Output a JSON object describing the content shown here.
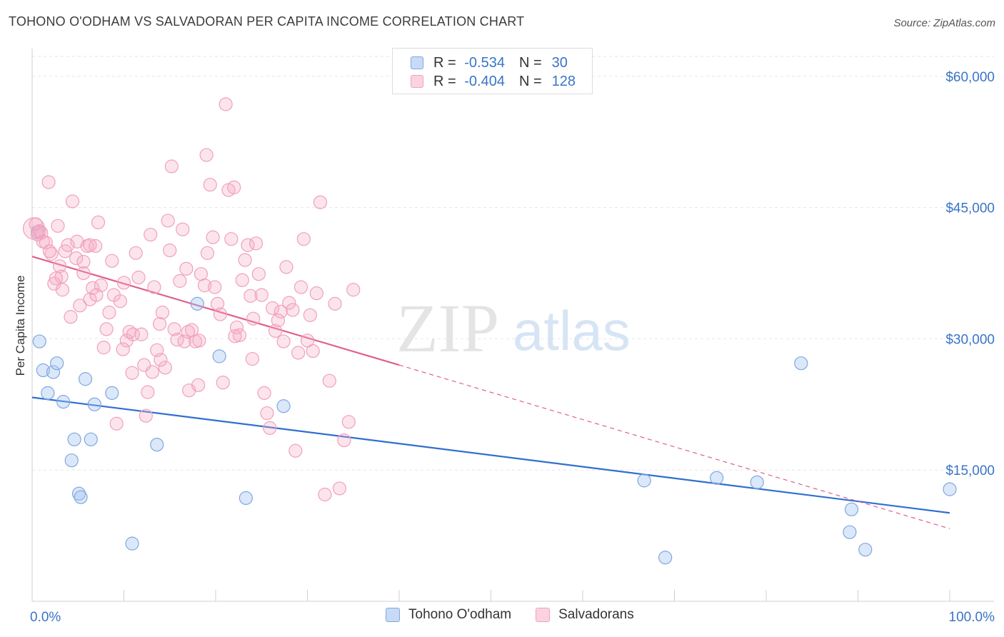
{
  "header": {
    "title": "TOHONO O'ODHAM VS SALVADORAN PER CAPITA INCOME CORRELATION CHART",
    "source": "Source: ZipAtlas.com"
  },
  "watermark": {
    "zip": "ZIP",
    "atlas": "atlas"
  },
  "legend": {
    "rows": [
      {
        "r_label": "R =",
        "r_value": "-0.534",
        "n_label": "N =",
        "n_value": "30",
        "color": "#7fa8e0"
      },
      {
        "r_label": "R =",
        "r_value": "-0.404",
        "n_label": "N =",
        "n_value": "128",
        "color": "#f0a0bc"
      }
    ]
  },
  "bottom_legend": [
    {
      "label": "Tohono O'odham",
      "color": "#7fa8e0"
    },
    {
      "label": "Salvadorans",
      "color": "#f0a0bc"
    }
  ],
  "chart_data": {
    "type": "scatter",
    "title": "TOHONO O'ODHAM VS SALVADORAN PER CAPITA INCOME CORRELATION CHART",
    "xlabel": "",
    "ylabel": "Per Capita Income",
    "xlim": [
      0,
      100
    ],
    "ylim": [
      0,
      63000
    ],
    "x_tick_labels": [
      "0.0%",
      "100.0%"
    ],
    "y_ticks": [
      15000,
      30000,
      45000,
      60000
    ],
    "y_tick_labels": [
      "$15,000",
      "$30,000",
      "$45,000",
      "$60,000"
    ],
    "grid": true,
    "series": [
      {
        "name": "Tohono O'odham",
        "color": "#7fa8e0",
        "line_color": "#2f6fd0",
        "trend": {
          "x": [
            0,
            100
          ],
          "y": [
            23300,
            10100
          ],
          "dashed_to": null
        },
        "points": [
          [
            0.6,
            42200
          ],
          [
            0.8,
            29700
          ],
          [
            1.2,
            26400
          ],
          [
            1.7,
            23800
          ],
          [
            2.3,
            26200
          ],
          [
            2.7,
            27200
          ],
          [
            3.4,
            22800
          ],
          [
            4.3,
            16100
          ],
          [
            4.6,
            18500
          ],
          [
            5.1,
            12300
          ],
          [
            5.3,
            11900
          ],
          [
            5.8,
            25400
          ],
          [
            6.4,
            18500
          ],
          [
            6.8,
            22500
          ],
          [
            8.7,
            23800
          ],
          [
            10.9,
            6600
          ],
          [
            13.6,
            17900
          ],
          [
            18.0,
            34000
          ],
          [
            20.4,
            28000
          ],
          [
            23.3,
            11800
          ],
          [
            27.4,
            22300
          ],
          [
            66.7,
            13800
          ],
          [
            69.0,
            5000
          ],
          [
            74.6,
            14100
          ],
          [
            79.0,
            13600
          ],
          [
            83.8,
            27200
          ],
          [
            89.3,
            10500
          ],
          [
            89.1,
            7900
          ],
          [
            90.8,
            5900
          ],
          [
            100.0,
            12800
          ]
        ]
      },
      {
        "name": "Salvadorans",
        "color": "#f0a0bc",
        "line_color": "#e0608c",
        "trend": {
          "x": [
            0,
            40
          ],
          "y": [
            39400,
            27000
          ],
          "dashed_to": [
            100,
            8300
          ]
        },
        "points": [
          [
            0.2,
            42600
          ],
          [
            0.4,
            43100
          ],
          [
            0.6,
            41900
          ],
          [
            0.8,
            42300
          ],
          [
            1.0,
            42100
          ],
          [
            1.2,
            41100
          ],
          [
            1.5,
            41000
          ],
          [
            1.8,
            47900
          ],
          [
            2.1,
            39700
          ],
          [
            2.4,
            36300
          ],
          [
            2.8,
            42900
          ],
          [
            3.0,
            38300
          ],
          [
            3.3,
            35600
          ],
          [
            3.6,
            40000
          ],
          [
            3.9,
            40700
          ],
          [
            4.2,
            32500
          ],
          [
            4.4,
            45700
          ],
          [
            4.8,
            39200
          ],
          [
            5.2,
            33800
          ],
          [
            5.6,
            37500
          ],
          [
            6.0,
            40600
          ],
          [
            6.3,
            34500
          ],
          [
            6.6,
            35800
          ],
          [
            6.9,
            40600
          ],
          [
            7.2,
            43300
          ],
          [
            7.5,
            36100
          ],
          [
            7.8,
            29000
          ],
          [
            8.1,
            31100
          ],
          [
            8.4,
            33000
          ],
          [
            8.7,
            38900
          ],
          [
            8.9,
            35000
          ],
          [
            9.2,
            20300
          ],
          [
            9.6,
            34300
          ],
          [
            10.0,
            36400
          ],
          [
            10.3,
            29800
          ],
          [
            10.6,
            30800
          ],
          [
            10.9,
            26100
          ],
          [
            11.3,
            39800
          ],
          [
            11.6,
            37000
          ],
          [
            11.9,
            30500
          ],
          [
            12.2,
            27000
          ],
          [
            12.6,
            23900
          ],
          [
            12.9,
            41900
          ],
          [
            13.3,
            35900
          ],
          [
            13.6,
            28700
          ],
          [
            13.9,
            31700
          ],
          [
            14.2,
            33000
          ],
          [
            14.5,
            26700
          ],
          [
            14.8,
            43500
          ],
          [
            15.2,
            49700
          ],
          [
            15.5,
            31100
          ],
          [
            15.8,
            29900
          ],
          [
            16.1,
            36600
          ],
          [
            16.4,
            42500
          ],
          [
            16.8,
            38000
          ],
          [
            17.1,
            24100
          ],
          [
            17.4,
            31000
          ],
          [
            17.8,
            29700
          ],
          [
            18.1,
            24700
          ],
          [
            18.4,
            37400
          ],
          [
            18.8,
            36100
          ],
          [
            19.1,
            39800
          ],
          [
            19.4,
            47600
          ],
          [
            19.0,
            51000
          ],
          [
            19.7,
            41600
          ],
          [
            19.9,
            35900
          ],
          [
            20.2,
            34000
          ],
          [
            20.5,
            32800
          ],
          [
            20.8,
            25000
          ],
          [
            21.1,
            56800
          ],
          [
            21.4,
            47000
          ],
          [
            21.7,
            41400
          ],
          [
            22.0,
            47300
          ],
          [
            22.3,
            31300
          ],
          [
            22.6,
            30400
          ],
          [
            22.9,
            36700
          ],
          [
            23.2,
            39000
          ],
          [
            23.5,
            40700
          ],
          [
            23.8,
            34900
          ],
          [
            24.1,
            32300
          ],
          [
            24.4,
            40900
          ],
          [
            24.7,
            37400
          ],
          [
            25.0,
            35000
          ],
          [
            25.3,
            23800
          ],
          [
            25.6,
            21500
          ],
          [
            25.9,
            19800
          ],
          [
            26.2,
            33500
          ],
          [
            26.5,
            30900
          ],
          [
            26.8,
            32100
          ],
          [
            27.1,
            33100
          ],
          [
            27.4,
            29700
          ],
          [
            27.7,
            38200
          ],
          [
            28.0,
            34100
          ],
          [
            28.4,
            33300
          ],
          [
            28.7,
            17200
          ],
          [
            29.0,
            28400
          ],
          [
            29.3,
            35900
          ],
          [
            29.6,
            41400
          ],
          [
            30.0,
            29800
          ],
          [
            30.3,
            32700
          ],
          [
            30.6,
            28600
          ],
          [
            31.0,
            35200
          ],
          [
            31.4,
            45600
          ],
          [
            31.9,
            12200
          ],
          [
            32.4,
            25200
          ],
          [
            33.0,
            34000
          ],
          [
            33.5,
            12900
          ],
          [
            34.0,
            18400
          ],
          [
            34.5,
            20500
          ],
          [
            35.0,
            35600
          ],
          [
            9.9,
            28800
          ],
          [
            15.0,
            40100
          ],
          [
            16.6,
            29700
          ],
          [
            14.0,
            27600
          ],
          [
            11.0,
            30500
          ],
          [
            12.4,
            21200
          ],
          [
            7.0,
            35000
          ],
          [
            6.3,
            40700
          ],
          [
            5.6,
            38800
          ],
          [
            4.9,
            41100
          ],
          [
            3.2,
            37100
          ],
          [
            2.6,
            36900
          ],
          [
            1.9,
            40000
          ],
          [
            13.1,
            26200
          ],
          [
            17.0,
            30800
          ],
          [
            22.1,
            30300
          ],
          [
            24.0,
            27700
          ],
          [
            18.2,
            29800
          ]
        ]
      }
    ]
  }
}
